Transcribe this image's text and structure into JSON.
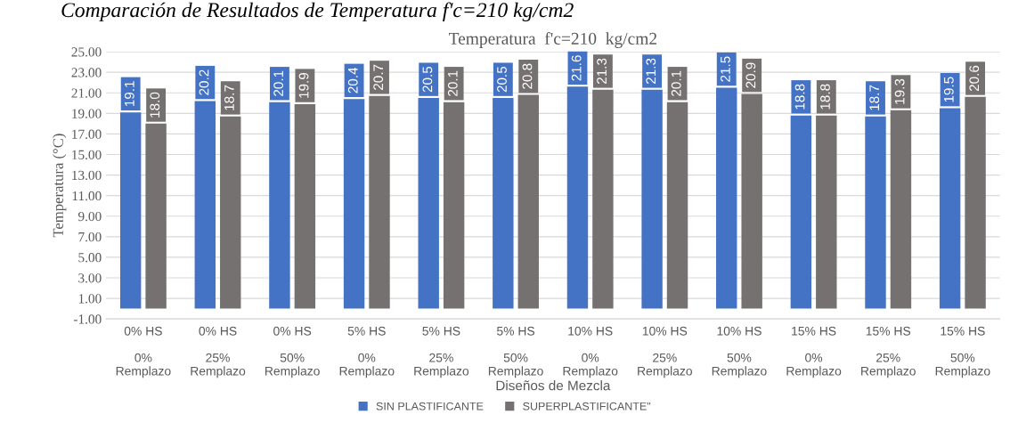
{
  "chart_data": {
    "type": "bar",
    "title": "Temperatura  f'c=210  kg/cm2",
    "xlabel": "Diseños de Mezcla",
    "ylabel": "Temperatura (°C)",
    "annotations": [
      "Comparación de Resultados de Temperatura f'c=210 kg/cm2"
    ],
    "categories": [
      "0% HS\n\n0%\nRemplazo",
      "0% HS\n\n25%\nRemplazo",
      "0% HS\n\n50%\nRemplazo",
      "5% HS\n\n0%\nRemplazo",
      "5% HS\n\n25%\nRemplazo",
      "5% HS\n\n50%\nRemplazo",
      "10% HS\n\n0%\nRemplazo",
      "10% HS\n\n25%\nRemplazo",
      "10% HS\n\n50%\nRemplazo",
      "15% HS\n\n0%\nRemplazo",
      "15% HS\n\n25%\nRemplazo",
      "15% HS\n\n50%\nRemplazo"
    ],
    "series": [
      {
        "name": "SIN PLASTIFICANTE",
        "color": "#4472c4",
        "values": [
          19.1,
          20.2,
          20.1,
          20.4,
          20.5,
          20.5,
          21.6,
          21.3,
          21.5,
          18.8,
          18.7,
          19.5
        ],
        "value_labels": [
          "19.1",
          "20.2",
          "20.1",
          "20.4",
          "20.5",
          "20.5",
          "21.6",
          "21.3",
          "21.5",
          "18.8",
          "18.7",
          "19.5"
        ]
      },
      {
        "name": "SUPERPLASTIFICANTE\"",
        "color": "#767171",
        "values": [
          18.0,
          18.7,
          19.9,
          20.7,
          20.1,
          20.8,
          21.3,
          20.1,
          20.9,
          18.8,
          19.3,
          20.6
        ],
        "value_labels": [
          "18.0",
          "18.7",
          "19.9",
          "20.7",
          "20.1",
          "20.8",
          "21.3",
          "20.1",
          "20.9",
          "18.8",
          "19.3",
          "20.6"
        ]
      }
    ],
    "ylim": [
      -1,
      25
    ],
    "yticks": [
      {
        "value": -1,
        "label": "-1.00"
      },
      {
        "value": 1,
        "label": "1.00"
      },
      {
        "value": 3,
        "label": "3.00"
      },
      {
        "value": 5,
        "label": "5.00"
      },
      {
        "value": 7,
        "label": "7.00"
      },
      {
        "value": 9,
        "label": "9.00"
      },
      {
        "value": 11,
        "label": "11.00"
      },
      {
        "value": 13,
        "label": "13.00"
      },
      {
        "value": 15,
        "label": "15.00"
      },
      {
        "value": 17,
        "label": "17.00"
      },
      {
        "value": 19,
        "label": "19.00"
      },
      {
        "value": 21,
        "label": "21.00"
      },
      {
        "value": 23,
        "label": "23.00"
      },
      {
        "value": 25,
        "label": "25.00"
      }
    ],
    "grid": "y",
    "legend": "bottom"
  }
}
